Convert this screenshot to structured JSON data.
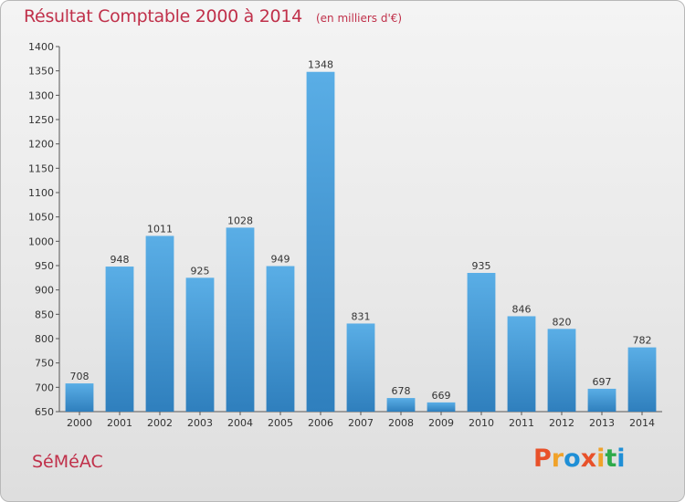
{
  "header": {
    "title": "Résultat Comptable 2000 à 2014",
    "subtitle": "(en milliers d'€)"
  },
  "footer": {
    "commune": "SéMéAC",
    "logo_text": "Proxiti",
    "logo_colors": [
      "#e8512a",
      "#f0a22a",
      "#1f8fd6",
      "#e8512a",
      "#f0a22a",
      "#2eaa4a",
      "#1f8fd6"
    ]
  },
  "colors": {
    "title": "#c0304a",
    "bar_top": "#5aaee6",
    "bar_bottom": "#2f7fbd"
  },
  "chart_data": {
    "type": "bar",
    "title": "Résultat Comptable 2000 à 2014",
    "subtitle": "(en milliers d'€)",
    "categories": [
      "2000",
      "2001",
      "2002",
      "2003",
      "2004",
      "2005",
      "2006",
      "2007",
      "2008",
      "2009",
      "2010",
      "2011",
      "2012",
      "2013",
      "2014"
    ],
    "values": [
      708,
      948,
      1011,
      925,
      1028,
      949,
      1348,
      831,
      678,
      669,
      935,
      846,
      820,
      697,
      782
    ],
    "ylim": [
      650,
      1400
    ],
    "yticks": [
      650,
      700,
      750,
      800,
      850,
      900,
      950,
      1000,
      1050,
      1100,
      1150,
      1200,
      1250,
      1300,
      1350,
      1400
    ],
    "grid": false,
    "xlabel": "",
    "ylabel": ""
  }
}
